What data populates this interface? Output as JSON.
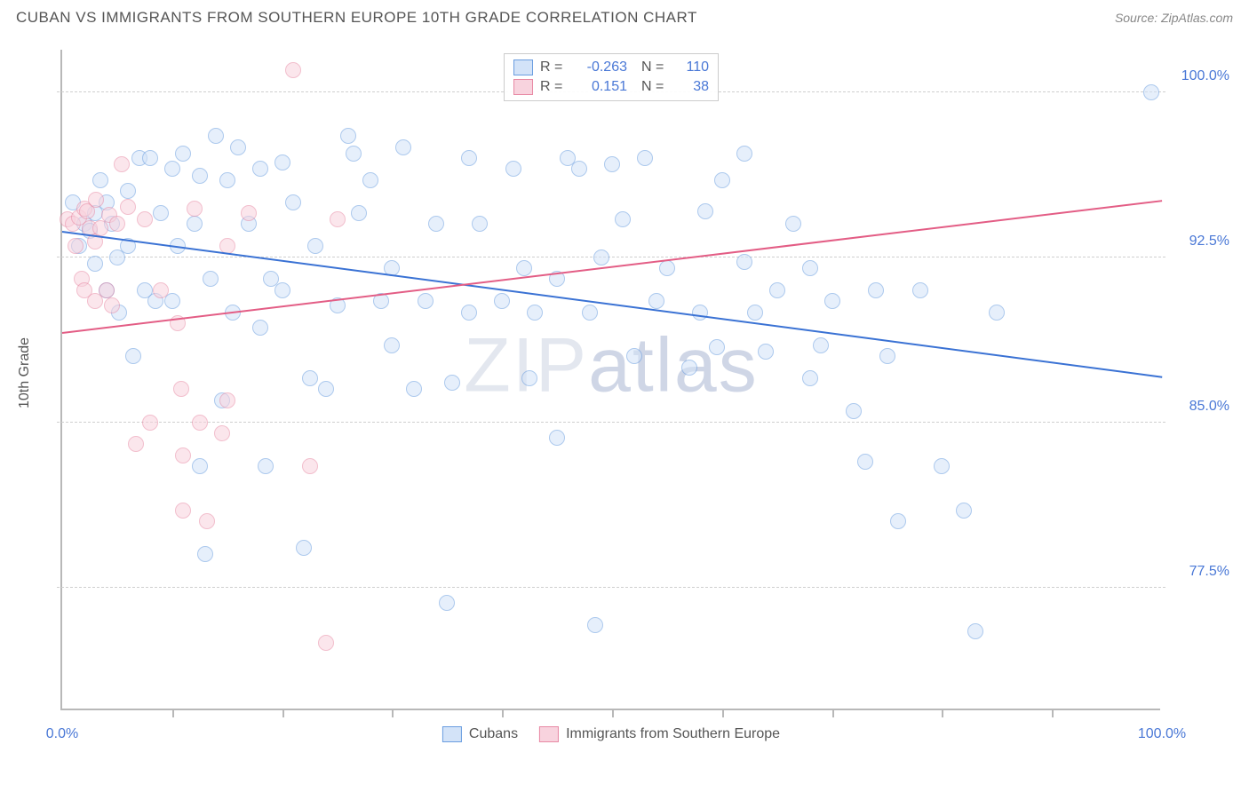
{
  "header": {
    "title": "CUBAN VS IMMIGRANTS FROM SOUTHERN EUROPE 10TH GRADE CORRELATION CHART",
    "source": "Source: ZipAtlas.com"
  },
  "chart": {
    "type": "scatter",
    "ylabel": "10th Grade",
    "watermark": "ZIPatlas",
    "background_color": "#ffffff",
    "grid_color": "#cfcfcf",
    "axis_color": "#b8b8b8",
    "text_color": "#555555",
    "value_color": "#4a78d6",
    "xlim": [
      0,
      100
    ],
    "ylim": [
      72,
      102
    ],
    "xticks_minor": [
      10,
      20,
      30,
      40,
      50,
      60,
      70,
      80,
      90
    ],
    "xticks_label": [
      {
        "pos": 0,
        "label": "0.0%"
      },
      {
        "pos": 100,
        "label": "100.0%"
      }
    ],
    "yticks": [
      {
        "pos": 77.5,
        "label": "77.5%"
      },
      {
        "pos": 85.0,
        "label": "85.0%"
      },
      {
        "pos": 92.5,
        "label": "92.5%"
      },
      {
        "pos": 100.0,
        "label": "100.0%"
      }
    ],
    "marker_radius": 9,
    "marker_stroke_width": 1.5,
    "line_width": 2,
    "series": [
      {
        "name": "Cubans",
        "fill": "#d3e3f8",
        "stroke": "#6a9de0",
        "line_color": "#3a72d4",
        "fill_opacity": 0.55,
        "R": "-0.263",
        "N": "110",
        "trend": {
          "x1": 0,
          "y1": 93.6,
          "x2": 100,
          "y2": 87.0
        },
        "points": [
          [
            1,
            95
          ],
          [
            1.5,
            93
          ],
          [
            2,
            94
          ],
          [
            2.5,
            93.7
          ],
          [
            3,
            94.5
          ],
          [
            3,
            92.2
          ],
          [
            3.5,
            96
          ],
          [
            4,
            91
          ],
          [
            4,
            95
          ],
          [
            4.5,
            94
          ],
          [
            5,
            92.5
          ],
          [
            5.2,
            90
          ],
          [
            6,
            95.5
          ],
          [
            6,
            93
          ],
          [
            6.5,
            88
          ],
          [
            7,
            97
          ],
          [
            7.5,
            91
          ],
          [
            8,
            97
          ],
          [
            8.5,
            90.5
          ],
          [
            9,
            94.5
          ],
          [
            10,
            96.5
          ],
          [
            10,
            90.5
          ],
          [
            10.5,
            93
          ],
          [
            11,
            97.2
          ],
          [
            12,
            94
          ],
          [
            12.5,
            83
          ],
          [
            12.5,
            96.2
          ],
          [
            13,
            79
          ],
          [
            13.5,
            91.5
          ],
          [
            14,
            98
          ],
          [
            14.5,
            86
          ],
          [
            15,
            96
          ],
          [
            15.5,
            90
          ],
          [
            16,
            97.5
          ],
          [
            17,
            94
          ],
          [
            18,
            96.5
          ],
          [
            18,
            89.3
          ],
          [
            18.5,
            83
          ],
          [
            19,
            91.5
          ],
          [
            20,
            96.8
          ],
          [
            20,
            91
          ],
          [
            21,
            95
          ],
          [
            22,
            79.3
          ],
          [
            22.5,
            87
          ],
          [
            23,
            93
          ],
          [
            24,
            86.5
          ],
          [
            25,
            90.3
          ],
          [
            26,
            98
          ],
          [
            26.5,
            97.2
          ],
          [
            27,
            94.5
          ],
          [
            28,
            96
          ],
          [
            29,
            90.5
          ],
          [
            30,
            92
          ],
          [
            30,
            88.5
          ],
          [
            31,
            97.5
          ],
          [
            32,
            86.5
          ],
          [
            33,
            90.5
          ],
          [
            34,
            94
          ],
          [
            35,
            76.8
          ],
          [
            35.5,
            86.8
          ],
          [
            37,
            90
          ],
          [
            37,
            97
          ],
          [
            38,
            94
          ],
          [
            40,
            90.5
          ],
          [
            41,
            96.5
          ],
          [
            42,
            92
          ],
          [
            42.5,
            87
          ],
          [
            43,
            90
          ],
          [
            45,
            84.3
          ],
          [
            45,
            91.5
          ],
          [
            46,
            97
          ],
          [
            47,
            96.5
          ],
          [
            48,
            90
          ],
          [
            48.5,
            75.8
          ],
          [
            49,
            92.5
          ],
          [
            50,
            96.7
          ],
          [
            51,
            94.2
          ],
          [
            52,
            88
          ],
          [
            53,
            97
          ],
          [
            54,
            90.5
          ],
          [
            55,
            92
          ],
          [
            57,
            87.5
          ],
          [
            58,
            90
          ],
          [
            58.5,
            94.6
          ],
          [
            59.5,
            88.4
          ],
          [
            60,
            96
          ],
          [
            62,
            92.3
          ],
          [
            62,
            97.2
          ],
          [
            63,
            90
          ],
          [
            64,
            88.2
          ],
          [
            65,
            91
          ],
          [
            66.5,
            94
          ],
          [
            68,
            87
          ],
          [
            68,
            92
          ],
          [
            69,
            88.5
          ],
          [
            70,
            90.5
          ],
          [
            72,
            85.5
          ],
          [
            73,
            83.2
          ],
          [
            74,
            91
          ],
          [
            75,
            88
          ],
          [
            76,
            80.5
          ],
          [
            78,
            91
          ],
          [
            80,
            83
          ],
          [
            82,
            81
          ],
          [
            83,
            75.5
          ],
          [
            85,
            90
          ],
          [
            99,
            100
          ]
        ]
      },
      {
        "name": "Immigrants from Southern Europe",
        "fill": "#f8d3de",
        "stroke": "#e889a4",
        "line_color": "#e35d85",
        "fill_opacity": 0.55,
        "R": "0.151",
        "N": "38",
        "trend": {
          "x1": 0,
          "y1": 89.0,
          "x2": 100,
          "y2": 95.0
        },
        "points": [
          [
            0.5,
            94.2
          ],
          [
            1,
            94
          ],
          [
            1.2,
            93
          ],
          [
            1.5,
            94.3
          ],
          [
            1.8,
            91.5
          ],
          [
            2,
            91
          ],
          [
            2,
            94.7
          ],
          [
            2.3,
            94.6
          ],
          [
            2.5,
            93.8
          ],
          [
            3,
            90.5
          ],
          [
            3,
            93.2
          ],
          [
            3.1,
            95.1
          ],
          [
            3.5,
            93.8
          ],
          [
            4,
            91.0
          ],
          [
            4.3,
            94.4
          ],
          [
            4.5,
            90.3
          ],
          [
            5,
            94
          ],
          [
            5.4,
            96.7
          ],
          [
            6,
            94.8
          ],
          [
            6.7,
            84
          ],
          [
            7.5,
            94.2
          ],
          [
            8,
            85
          ],
          [
            9,
            91
          ],
          [
            10.5,
            89.5
          ],
          [
            10.8,
            86.5
          ],
          [
            11,
            83.5
          ],
          [
            11,
            81
          ],
          [
            12,
            94.7
          ],
          [
            12.5,
            85
          ],
          [
            13.2,
            80.5
          ],
          [
            14.5,
            84.5
          ],
          [
            15,
            86
          ],
          [
            15,
            93
          ],
          [
            17,
            94.5
          ],
          [
            21,
            101
          ],
          [
            22.5,
            83
          ],
          [
            24,
            75
          ],
          [
            25,
            94.2
          ]
        ]
      }
    ],
    "legend_bottom": [
      {
        "label": "Cubans",
        "series": 0
      },
      {
        "label": "Immigrants from Southern Europe",
        "series": 1
      }
    ]
  }
}
